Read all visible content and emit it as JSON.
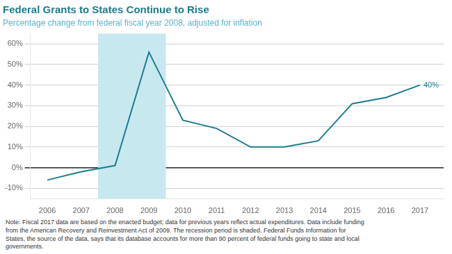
{
  "chart_data": {
    "type": "line",
    "title": "Federal Grants to States Continue to Rise",
    "subtitle": "Percentage change from federal fiscal year 2008, adjusted for inflation",
    "note": "Note: Fiscal 2017 data are based on the enacted budget; data for previous years reflect actual expenditures. Data include funding\nfrom the American Recovery and Reinvestment Act of 2009. The recession period is shaded. Federal Funds Information for\nStates, the source of the data, says that its database accounts for more than 90 percent of federal funds going to state and local\ngovernments.",
    "x": [
      2006,
      2007,
      2008,
      2009,
      2010,
      2011,
      2012,
      2013,
      2014,
      2015,
      2016,
      2017
    ],
    "values": [
      -6,
      -2,
      1,
      56,
      23,
      19,
      10,
      10,
      13,
      31,
      34,
      40
    ],
    "color": "#1a7d8e",
    "xlim": [
      2005.5,
      2017.7
    ],
    "xticks": [
      2006,
      2007,
      2008,
      2009,
      2010,
      2011,
      2012,
      2013,
      2014,
      2015,
      2016,
      2017
    ],
    "ylim": [
      -15,
      65
    ],
    "yticks": [
      {
        "value": -10,
        "label": "-10%"
      },
      {
        "value": 0,
        "label": "0%"
      },
      {
        "value": 10,
        "label": "10%"
      },
      {
        "value": 20,
        "label": "20%"
      },
      {
        "value": 30,
        "label": "30%"
      },
      {
        "value": 40,
        "label": "40%"
      },
      {
        "value": 50,
        "label": "50%"
      },
      {
        "value": 60,
        "label": "60%"
      }
    ],
    "grid": true,
    "annotations": [
      {
        "x": 2017,
        "y": 40,
        "text": "40%"
      }
    ],
    "shaded_range": [
      2007.5,
      2009.5
    ]
  }
}
